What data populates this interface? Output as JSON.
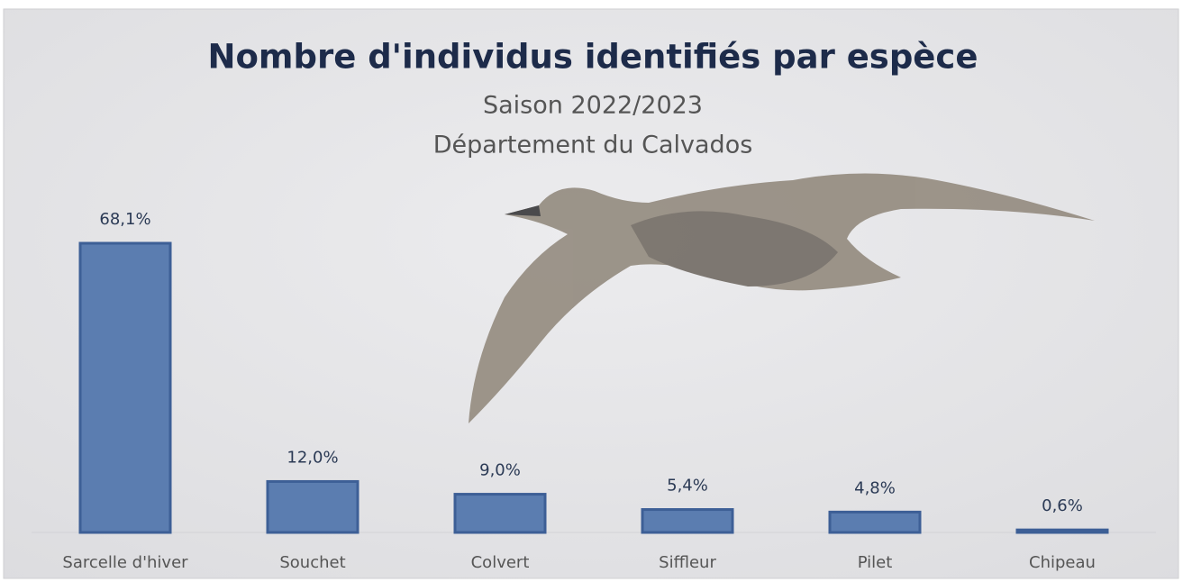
{
  "chart_data": {
    "type": "bar",
    "title": "Nombre d'individus identifiés par espèce",
    "subtitle": [
      "Saison 2022/2023",
      "Département du Calvados"
    ],
    "categories": [
      "Sarcelle d'hiver",
      "Souchet",
      "Colvert",
      "Siffleur",
      "Pilet",
      "Chipeau"
    ],
    "values": [
      68.1,
      12.0,
      9.0,
      5.4,
      4.8,
      0.6
    ],
    "value_labels": [
      "68,1%",
      "12,0%",
      "9,0%",
      "5,4%",
      "4,8%",
      "0,6%"
    ],
    "color": "#5b7db0"
  }
}
